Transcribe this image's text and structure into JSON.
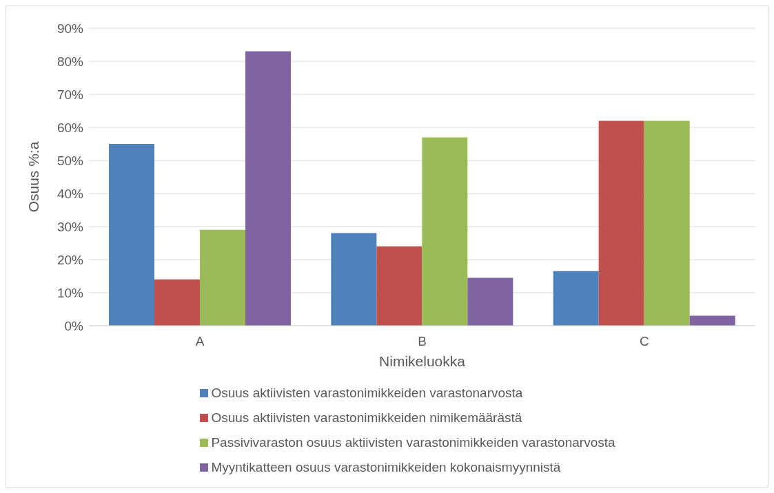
{
  "chart_data": {
    "type": "bar",
    "xlabel": "Nimikeluokka",
    "ylabel": "Osuus %:a",
    "categories": [
      "A",
      "B",
      "C"
    ],
    "series": [
      {
        "name": "Osuus aktiivisten varastonimikkeiden varastonarvosta",
        "color": "#4f81bd",
        "values": [
          55,
          28,
          16.5
        ]
      },
      {
        "name": "Osuus aktiivisten varastonimikkeiden nimikemäärästä",
        "color": "#c0504d",
        "values": [
          14,
          24,
          62
        ]
      },
      {
        "name": "Passivivaraston osuus aktiivisten varastonimikkeiden varastonarvosta",
        "color": "#9bbb59",
        "values": [
          29,
          57,
          62
        ]
      },
      {
        "name": "Myyntikatteen osuus varastonimikkeiden kokonaismyynnistä",
        "color": "#8064a2",
        "values": [
          83,
          14.5,
          3
        ]
      }
    ],
    "ylim": [
      0,
      90
    ],
    "yticks": [
      {
        "value": 0,
        "label": "0%"
      },
      {
        "value": 10,
        "label": "10%"
      },
      {
        "value": 20,
        "label": "20%"
      },
      {
        "value": 30,
        "label": "30%"
      },
      {
        "value": 40,
        "label": "40%"
      },
      {
        "value": 50,
        "label": "50%"
      },
      {
        "value": 60,
        "label": "60%"
      },
      {
        "value": 70,
        "label": "70%"
      },
      {
        "value": 80,
        "label": "80%"
      },
      {
        "value": 90,
        "label": "90%"
      }
    ],
    "grid": "y",
    "legend": "bottom"
  }
}
